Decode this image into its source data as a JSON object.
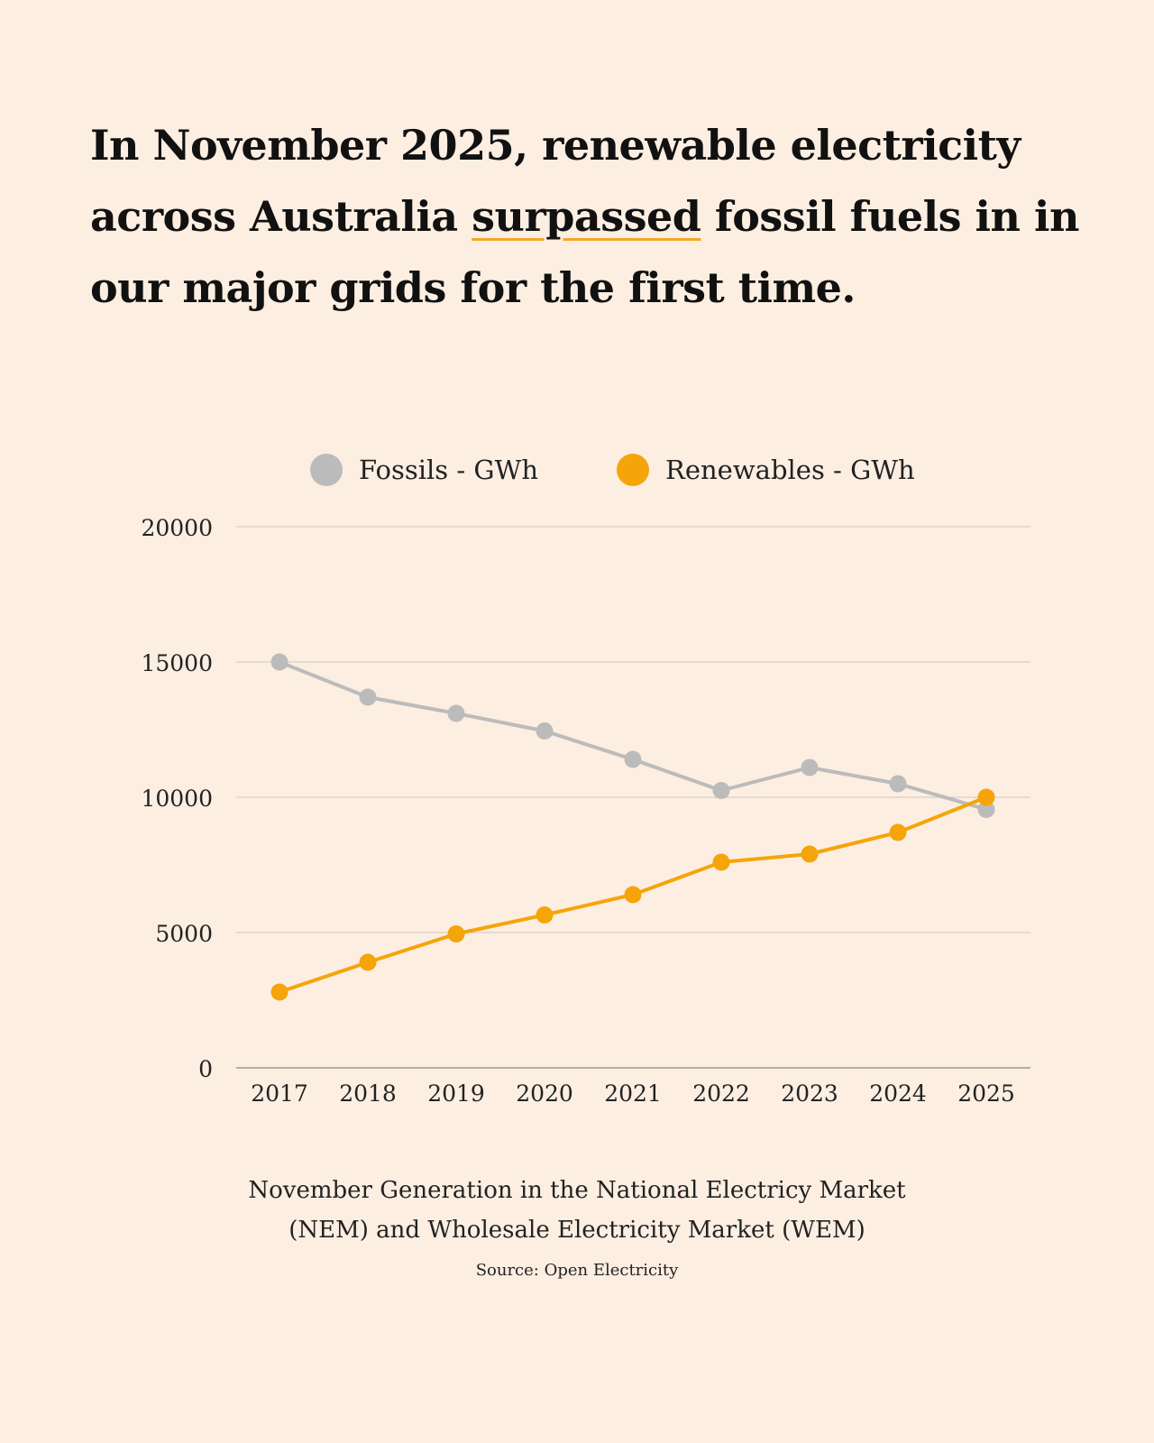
{
  "headline": {
    "part1": "In November 2025,  renewable electricity across Australia ",
    "highlight": "surpassed",
    "part2": " fossil fuels in in our major grids for the first time."
  },
  "caption": {
    "line1": "November Generation in the National Electricy Market",
    "line2": "(NEM)  and Wholesale Electricity Market (WEM)"
  },
  "source": "Source: Open Electricity",
  "colors": {
    "fossils": "#bbbbbb",
    "renewables": "#f5a50a",
    "grid": "#cfc6bf",
    "axis": "#999999"
  },
  "chart_data": {
    "type": "line",
    "title": "",
    "xlabel": "",
    "ylabel": "",
    "categories": [
      "2017",
      "2018",
      "2019",
      "2020",
      "2021",
      "2022",
      "2023",
      "2024",
      "2025"
    ],
    "ylim": [
      0,
      20000
    ],
    "yticks": [
      0,
      5000,
      10000,
      15000,
      20000
    ],
    "grid": true,
    "legend": "top-center",
    "series": [
      {
        "name": "Fossils - GWh",
        "color": "#bbbbbb",
        "values": [
          15000,
          13700,
          13100,
          12450,
          11400,
          10250,
          11100,
          10500,
          9550
        ]
      },
      {
        "name": "Renewables - GWh",
        "color": "#f5a50a",
        "values": [
          2800,
          3900,
          4950,
          5650,
          6400,
          7600,
          7900,
          8700,
          10000
        ]
      }
    ]
  }
}
